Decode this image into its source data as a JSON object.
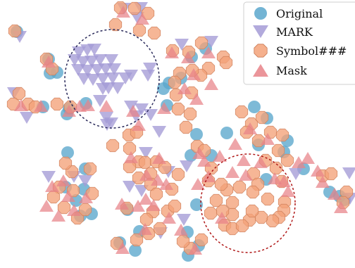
{
  "chart_data": {
    "type": "scatter",
    "title": "",
    "xlabel": "",
    "ylabel": "",
    "legend_position": "top-right",
    "series": [
      {
        "name": "Original",
        "marker": "circle",
        "color": "#5aa7cc",
        "points": [
          [
            24,
            45
          ],
          [
            69,
            84
          ],
          [
            71,
            104
          ],
          [
            81,
            103
          ],
          [
            61,
            152
          ],
          [
            95,
            162
          ],
          [
            98,
            154
          ],
          [
            122,
            147
          ],
          [
            96,
            217
          ],
          [
            121,
            240
          ],
          [
            93,
            266
          ],
          [
            119,
            269
          ],
          [
            108,
            285
          ],
          [
            130,
            304
          ],
          [
            114,
            307
          ],
          [
            181,
            298
          ],
          [
            198,
            329
          ],
          [
            192,
            356
          ],
          [
            170,
            345
          ],
          [
            240,
            118
          ],
          [
            232,
            126
          ],
          [
            257,
            111
          ],
          [
            237,
            150
          ],
          [
            272,
            81
          ],
          [
            292,
            69
          ],
          [
            279,
            191
          ],
          [
            271,
            221
          ],
          [
            279,
            291
          ],
          [
            266,
            330
          ],
          [
            282,
            349
          ],
          [
            267,
            363
          ],
          [
            322,
            189
          ],
          [
            300,
            221
          ],
          [
            379,
            168
          ],
          [
            361,
            152
          ],
          [
            408,
            200
          ],
          [
            403,
            216
          ],
          [
            431,
            240
          ],
          [
            378,
            255
          ],
          [
            367,
            206
          ],
          [
            468,
            273
          ],
          [
            482,
            279
          ],
          [
            489,
            284
          ]
        ]
      },
      {
        "name": "MARK",
        "marker": "triangle-down",
        "color": "#a49bd6",
        "points": [
          [
            28,
            51
          ],
          [
            112,
            73
          ],
          [
            124,
            70
          ],
          [
            134,
            69
          ],
          [
            106,
            84
          ],
          [
            118,
            87
          ],
          [
            130,
            86
          ],
          [
            142,
            84
          ],
          [
            158,
            84
          ],
          [
            111,
            98
          ],
          [
            124,
            99
          ],
          [
            138,
            98
          ],
          [
            150,
            97
          ],
          [
            162,
            97
          ],
          [
            119,
            111
          ],
          [
            132,
            112
          ],
          [
            146,
            111
          ],
          [
            160,
            110
          ],
          [
            178,
            110
          ],
          [
            146,
            125
          ],
          [
            154,
            124
          ],
          [
            167,
            124
          ],
          [
            186,
            106
          ],
          [
            142,
            142
          ],
          [
            186,
            150
          ],
          [
            193,
            164
          ],
          [
            151,
            166
          ],
          [
            158,
            174
          ],
          [
            210,
            106
          ],
          [
            213,
            96
          ],
          [
            176,
            11
          ],
          [
            200,
            10
          ],
          [
            195,
            24
          ],
          [
            152,
            176
          ],
          [
            69,
            250
          ],
          [
            105,
            250
          ],
          [
            121,
            256
          ],
          [
            207,
            216
          ],
          [
            184,
            264
          ],
          [
            201,
            270
          ],
          [
            265,
            235
          ],
          [
            239,
            243
          ],
          [
            261,
            311
          ],
          [
            228,
            330
          ],
          [
            214,
            162
          ],
          [
            226,
            186
          ],
          [
            201,
            154
          ],
          [
            420,
            246
          ],
          [
            496,
            245
          ],
          [
            497,
            281
          ],
          [
            258,
            62
          ],
          [
            300,
            58
          ],
          [
            38,
            166
          ],
          [
            20,
            131
          ]
        ]
      },
      {
        "name": "Symbol###",
        "marker": "octagon",
        "color": "#f3a279",
        "points": [
          [
            21,
            44
          ],
          [
            66,
            84
          ],
          [
            74,
            98
          ],
          [
            27,
            133
          ],
          [
            19,
            148
          ],
          [
            40,
            148
          ],
          [
            50,
            152
          ],
          [
            100,
            152
          ],
          [
            81,
            148
          ],
          [
            160,
            207
          ],
          [
            184,
            211
          ],
          [
            183,
            192
          ],
          [
            194,
            188
          ],
          [
            171,
            11
          ],
          [
            191,
            12
          ],
          [
            210,
            19
          ],
          [
            219,
            47
          ],
          [
            198,
            43
          ],
          [
            164,
            35
          ],
          [
            245,
            72
          ],
          [
            268,
            74
          ],
          [
            286,
            61
          ],
          [
            317,
            81
          ],
          [
            321,
            89
          ],
          [
            296,
            97
          ],
          [
            285,
            107
          ],
          [
            255,
            104
          ],
          [
            248,
            117
          ],
          [
            250,
            135
          ],
          [
            272,
            132
          ],
          [
            273,
            100
          ],
          [
            253,
            155
          ],
          [
            270,
            162
          ],
          [
            264,
            181
          ],
          [
            280,
            208
          ],
          [
            290,
            214
          ],
          [
            343,
            159
          ],
          [
            357,
            176
          ],
          [
            350,
            188
          ],
          [
            367,
            200
          ],
          [
            372,
            167
          ],
          [
            384,
            188
          ],
          [
            401,
            192
          ],
          [
            395,
            214
          ],
          [
            408,
            228
          ],
          [
            377,
            228
          ],
          [
            392,
            239
          ],
          [
            400,
            258
          ],
          [
            360,
            247
          ],
          [
            366,
            262
          ],
          [
            380,
            283
          ],
          [
            404,
            287
          ],
          [
            403,
            299
          ],
          [
            396,
            309
          ],
          [
            387,
            314
          ],
          [
            371,
            309
          ],
          [
            354,
            313
          ],
          [
            358,
            300
          ],
          [
            359,
            273
          ],
          [
            330,
            288
          ],
          [
            330,
            305
          ],
          [
            316,
            300
          ],
          [
            322,
            270
          ],
          [
            307,
            285
          ],
          [
            299,
            303
          ],
          [
            319,
            320
          ],
          [
            330,
            325
          ],
          [
            314,
            262
          ],
          [
            296,
            257
          ],
          [
            300,
            239
          ],
          [
            340,
            266
          ],
          [
            344,
            321
          ],
          [
            458,
            250
          ],
          [
            470,
            247
          ],
          [
            492,
            273
          ],
          [
            487,
            288
          ],
          [
            102,
            244
          ],
          [
            93,
            232
          ],
          [
            128,
            240
          ],
          [
            104,
            271
          ],
          [
            84,
            266
          ],
          [
            76,
            280
          ],
          [
            91,
            295
          ],
          [
            110,
            310
          ],
          [
            121,
            298
          ],
          [
            131,
            275
          ],
          [
            197,
            230
          ],
          [
            206,
            231
          ],
          [
            214,
            247
          ],
          [
            197,
            253
          ],
          [
            214,
            262
          ],
          [
            222,
            230
          ],
          [
            234,
            238
          ],
          [
            253,
            248
          ],
          [
            244,
            269
          ],
          [
            222,
            276
          ],
          [
            238,
            300
          ],
          [
            248,
            293
          ],
          [
            217,
            301
          ],
          [
            208,
            312
          ],
          [
            211,
            332
          ],
          [
            227,
            325
          ],
          [
            180,
            296
          ],
          [
            166,
            346
          ],
          [
            194,
            341
          ],
          [
            270,
            353
          ],
          [
            260,
            343
          ],
          [
            286,
            341
          ],
          [
            184,
            237
          ]
        ]
      },
      {
        "name": "Mask",
        "marker": "triangle-up",
        "color": "#e88288",
        "points": [
          [
            69,
            89
          ],
          [
            58,
            152
          ],
          [
            98,
            159
          ],
          [
            113,
            152
          ],
          [
            125,
            151
          ],
          [
            30,
            151
          ],
          [
            267,
            83
          ],
          [
            275,
            107
          ],
          [
            300,
            121
          ],
          [
            262,
            127
          ],
          [
            279,
            142
          ],
          [
            233,
            155
          ],
          [
            355,
            184
          ],
          [
            380,
            199
          ],
          [
            334,
            206
          ],
          [
            346,
            229
          ],
          [
            370,
            232
          ],
          [
            390,
            255
          ],
          [
            403,
            259
          ],
          [
            409,
            273
          ],
          [
            349,
            250
          ],
          [
            296,
            252
          ],
          [
            330,
            246
          ],
          [
            312,
            223
          ],
          [
            290,
            230
          ],
          [
            315,
            311
          ],
          [
            281,
            263
          ],
          [
            424,
            232
          ],
          [
            437,
            226
          ],
          [
            451,
            244
          ],
          [
            458,
            260
          ],
          [
            475,
            277
          ],
          [
            484,
            296
          ],
          [
            90,
            258
          ],
          [
            97,
            280
          ],
          [
            105,
            300
          ],
          [
            122,
            282
          ],
          [
            74,
            266
          ],
          [
            66,
            294
          ],
          [
            83,
            308
          ],
          [
            208,
            250
          ],
          [
            224,
            257
          ],
          [
            236,
            263
          ],
          [
            207,
            284
          ],
          [
            196,
            294
          ],
          [
            218,
            293
          ],
          [
            240,
            311
          ],
          [
            257,
            328
          ],
          [
            206,
            327
          ],
          [
            174,
            354
          ],
          [
            277,
            355
          ],
          [
            186,
            225
          ],
          [
            226,
            226
          ],
          [
            283,
            219
          ],
          [
            151,
            152
          ],
          [
            189,
            159
          ],
          [
            197,
            179
          ],
          [
            175,
            18
          ],
          [
            202,
            28
          ],
          [
            173,
            291
          ],
          [
            244,
            76
          ],
          [
            296,
            76
          ]
        ]
      }
    ],
    "annotations": [
      {
        "shape": "dashed-ellipse",
        "color": "#2a2a5a",
        "around": "MARK cluster"
      },
      {
        "shape": "dashed-ellipse",
        "color": "#b01818",
        "around": "Symbol### cluster"
      }
    ]
  }
}
